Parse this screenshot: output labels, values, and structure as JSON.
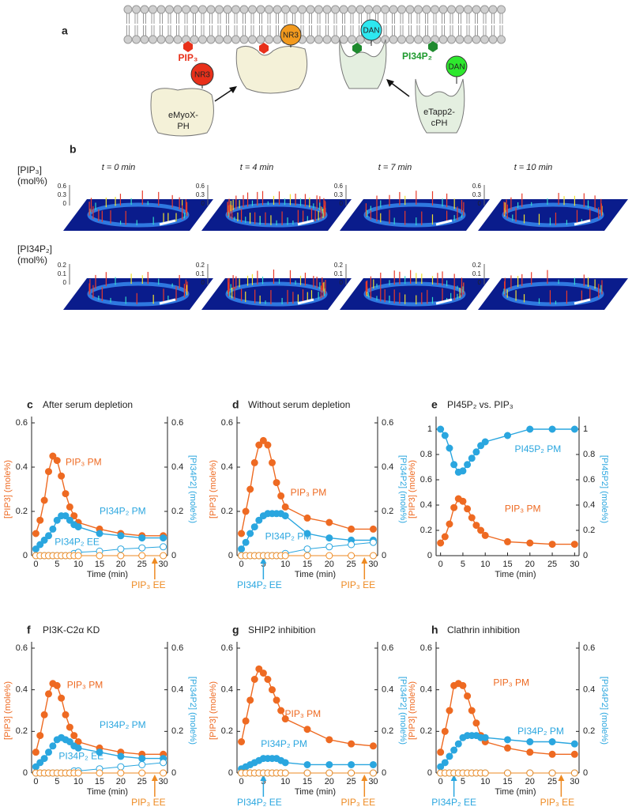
{
  "panel_a": {
    "label": "a",
    "lipids": [
      "PIP₃",
      "PI34P₂"
    ],
    "probes": [
      "NR3",
      "NR3",
      "DAN",
      "DAN"
    ],
    "proteins": [
      [
        "eMyoX-",
        "PH"
      ],
      [
        "eTapp2-",
        "cPH"
      ]
    ]
  },
  "panel_b": {
    "label": "b",
    "times": [
      "t = 0 min",
      "t = 4 min",
      "t = 7 min",
      "t = 10 min"
    ],
    "rows": [
      {
        "label": [
          "[PIP₃]",
          "(mol%)"
        ],
        "ticks": [
          "0.6",
          "0.3",
          "0"
        ]
      },
      {
        "label": [
          "[PI34P₂]",
          "(mol%)"
        ],
        "ticks": [
          "0.2",
          "0.1",
          "0"
        ]
      }
    ]
  },
  "chart_data": [
    {
      "type": "line",
      "panel_label": "c",
      "title": "After serum depletion",
      "x_label": "Time (min)",
      "y_label": "[PIP3] (mole%)",
      "y2_label": "[PI34P2] (mole%)",
      "xlim": [
        -1,
        31
      ],
      "xticks": [
        0,
        5,
        10,
        15,
        20,
        25,
        30
      ],
      "ylim": [
        0,
        0.6
      ],
      "yticks": [
        0,
        0.2,
        0.4,
        0.6
      ],
      "y2lim": [
        0,
        0.6
      ],
      "y2ticks": [
        0,
        0.2,
        0.4,
        0.6
      ],
      "x": [
        0,
        1,
        2,
        3,
        4,
        5,
        6,
        7,
        8,
        9,
        10,
        15,
        20,
        25,
        30
      ],
      "series": [
        {
          "name": "PIP₃ PM",
          "color": "#ee6a22",
          "marker": "filled",
          "values": [
            0.1,
            0.16,
            0.25,
            0.38,
            0.45,
            0.43,
            0.36,
            0.28,
            0.22,
            0.18,
            0.15,
            0.12,
            0.1,
            0.09,
            0.09
          ]
        },
        {
          "name": "PI34P₂ PM",
          "color": "#2aa6df",
          "marker": "filled",
          "axis": "y2",
          "values": [
            0.03,
            0.05,
            0.07,
            0.09,
            0.12,
            0.16,
            0.18,
            0.18,
            0.16,
            0.14,
            0.13,
            0.1,
            0.09,
            0.08,
            0.08
          ]
        },
        {
          "name": "PI34P₂ EE",
          "color": "#2aa6df",
          "marker": "open",
          "axis": "y2",
          "values": [
            0,
            0,
            0,
            0,
            0,
            0,
            0,
            0,
            0,
            0.01,
            0.015,
            0.02,
            0.03,
            0.035,
            0.04
          ]
        },
        {
          "name": "PIP₃ EE",
          "color": "#ee8a22",
          "marker": "open",
          "values": [
            0,
            0,
            0,
            0,
            0,
            0,
            0,
            0,
            0,
            0,
            0,
            0,
            0,
            0,
            0
          ]
        }
      ]
    },
    {
      "type": "line",
      "panel_label": "d",
      "title": "Without serum depletion",
      "x_label": "Time (min)",
      "y_label": "[PIP3] (mole%)",
      "y2_label": "[PI34P2] (mole%)",
      "xlim": [
        -1,
        31
      ],
      "xticks": [
        0,
        5,
        10,
        15,
        20,
        25,
        30
      ],
      "ylim": [
        0,
        0.6
      ],
      "yticks": [
        0,
        0.2,
        0.4,
        0.6
      ],
      "y2lim": [
        0,
        0.6
      ],
      "y2ticks": [
        0,
        0.2,
        0.4,
        0.6
      ],
      "x": [
        0,
        1,
        2,
        3,
        4,
        5,
        6,
        7,
        8,
        9,
        10,
        15,
        20,
        25,
        30
      ],
      "series": [
        {
          "name": "PIP₃ PM",
          "color": "#ee6a22",
          "marker": "filled",
          "values": [
            0.1,
            0.2,
            0.3,
            0.42,
            0.5,
            0.52,
            0.5,
            0.42,
            0.33,
            0.27,
            0.22,
            0.17,
            0.15,
            0.12,
            0.12
          ]
        },
        {
          "name": "PI34P₂ PM",
          "color": "#2aa6df",
          "marker": "filled",
          "axis": "y2",
          "values": [
            0.03,
            0.06,
            0.1,
            0.13,
            0.16,
            0.18,
            0.19,
            0.19,
            0.19,
            0.19,
            0.18,
            0.1,
            0.08,
            0.07,
            0.07
          ]
        },
        {
          "name": "PI34P₂ EE",
          "color": "#2aa6df",
          "marker": "open",
          "axis": "y2",
          "values": [
            0,
            0,
            0,
            0,
            0,
            0,
            0,
            0,
            0,
            0,
            0.01,
            0.03,
            0.04,
            0.05,
            0.06
          ]
        },
        {
          "name": "PIP₃ EE",
          "color": "#ee8a22",
          "marker": "open",
          "values": [
            0,
            0,
            0,
            0,
            0,
            0,
            0,
            0,
            0,
            0,
            0,
            0,
            0,
            0,
            0
          ]
        }
      ]
    },
    {
      "type": "line",
      "panel_label": "e",
      "title": "PI45P₂ vs. PIP₃",
      "x_label": "Time (min)",
      "y_label": "[PIP3] (mole%)",
      "y2_label": "[PI45P2] (mole%)",
      "xlim": [
        -1,
        31
      ],
      "xticks": [
        0,
        5,
        10,
        15,
        20,
        25,
        30
      ],
      "ylim": [
        0,
        1.05
      ],
      "yticks": [
        0,
        0.2,
        0.4,
        0.6,
        0.8,
        1
      ],
      "y2lim": [
        0,
        1.05
      ],
      "y2ticks": [
        0,
        0.2,
        0.4,
        0.6,
        0.8,
        1
      ],
      "x": [
        0,
        1,
        2,
        3,
        4,
        5,
        6,
        7,
        8,
        9,
        10,
        15,
        20,
        25,
        30
      ],
      "series": [
        {
          "name": "PI45P₂ PM",
          "color": "#2aa6df",
          "marker": "filled",
          "axis": "y2",
          "values": [
            1.0,
            0.95,
            0.85,
            0.72,
            0.66,
            0.67,
            0.72,
            0.77,
            0.82,
            0.87,
            0.9,
            0.95,
            1.0,
            1.0,
            1.0
          ]
        },
        {
          "name": "PIP₃ PM",
          "color": "#ee6a22",
          "marker": "filled",
          "values": [
            0.1,
            0.15,
            0.25,
            0.38,
            0.45,
            0.43,
            0.37,
            0.3,
            0.24,
            0.2,
            0.16,
            0.11,
            0.1,
            0.09,
            0.09
          ]
        }
      ]
    },
    {
      "type": "line",
      "panel_label": "f",
      "title": "PI3K-C2α KD",
      "x_label": "Time (min)",
      "y_label": "[PIP3] (mole%)",
      "y2_label": "[PI34P2] (mole%)",
      "xlim": [
        -1,
        31
      ],
      "xticks": [
        0,
        5,
        10,
        15,
        20,
        25,
        30
      ],
      "ylim": [
        0,
        0.6
      ],
      "yticks": [
        0,
        0.2,
        0.4,
        0.6
      ],
      "y2lim": [
        0,
        0.6
      ],
      "y2ticks": [
        0,
        0.2,
        0.4,
        0.6
      ],
      "x": [
        0,
        1,
        2,
        3,
        4,
        5,
        6,
        7,
        8,
        9,
        10,
        15,
        20,
        25,
        30
      ],
      "series": [
        {
          "name": "PIP₃ PM",
          "color": "#ee6a22",
          "marker": "filled",
          "values": [
            0.1,
            0.18,
            0.28,
            0.38,
            0.43,
            0.42,
            0.36,
            0.28,
            0.22,
            0.18,
            0.15,
            0.12,
            0.1,
            0.09,
            0.09
          ]
        },
        {
          "name": "PI34P₂ PM",
          "color": "#2aa6df",
          "marker": "filled",
          "axis": "y2",
          "values": [
            0.03,
            0.05,
            0.07,
            0.1,
            0.13,
            0.16,
            0.17,
            0.16,
            0.15,
            0.13,
            0.12,
            0.1,
            0.08,
            0.07,
            0.07
          ]
        },
        {
          "name": "PI34P₂ EE",
          "color": "#2aa6df",
          "marker": "open",
          "axis": "y2",
          "values": [
            0,
            0,
            0,
            0,
            0,
            0,
            0,
            0,
            0,
            0.01,
            0.01,
            0.02,
            0.03,
            0.04,
            0.05
          ]
        },
        {
          "name": "PIP₃ EE",
          "color": "#ee8a22",
          "marker": "open",
          "values": [
            0,
            0,
            0,
            0,
            0,
            0,
            0,
            0,
            0,
            0,
            0,
            0,
            0,
            0,
            0
          ]
        }
      ]
    },
    {
      "type": "line",
      "panel_label": "g",
      "title": "SHIP2 inhibition",
      "x_label": "Time (min)",
      "y_label": "[PIP3] (mole%)",
      "y2_label": "[PI34P2] (mole%)",
      "xlim": [
        -1,
        31
      ],
      "xticks": [
        0,
        5,
        10,
        15,
        20,
        25,
        30
      ],
      "ylim": [
        0,
        0.6
      ],
      "yticks": [
        0,
        0.2,
        0.4,
        0.6
      ],
      "y2lim": [
        0,
        0.6
      ],
      "y2ticks": [
        0,
        0.2,
        0.4,
        0.6
      ],
      "x": [
        0,
        1,
        2,
        3,
        4,
        5,
        6,
        7,
        8,
        9,
        10,
        15,
        20,
        25,
        30
      ],
      "series": [
        {
          "name": "PIP₃ PM",
          "color": "#ee6a22",
          "marker": "filled",
          "values": [
            0.15,
            0.25,
            0.35,
            0.45,
            0.5,
            0.48,
            0.45,
            0.4,
            0.35,
            0.3,
            0.26,
            0.21,
            0.16,
            0.14,
            0.13
          ]
        },
        {
          "name": "PI34P₂ PM",
          "color": "#2aa6df",
          "marker": "filled",
          "axis": "y2",
          "values": [
            0.02,
            0.03,
            0.04,
            0.05,
            0.06,
            0.07,
            0.07,
            0.07,
            0.07,
            0.06,
            0.05,
            0.04,
            0.04,
            0.04,
            0.04
          ]
        },
        {
          "name": "PI34P₂ EE",
          "color": "#2aa6df",
          "marker": "open",
          "axis": "y2",
          "values": [
            0,
            0,
            0,
            0,
            0,
            0,
            0,
            0,
            0,
            0,
            0,
            0,
            0,
            0,
            0
          ]
        },
        {
          "name": "PIP₃ EE",
          "color": "#ee8a22",
          "marker": "open",
          "values": [
            0,
            0,
            0,
            0,
            0,
            0,
            0,
            0,
            0,
            0,
            0,
            0,
            0,
            0,
            0
          ]
        }
      ]
    },
    {
      "type": "line",
      "panel_label": "h",
      "title": "Clathrin inhibition",
      "x_label": "Time (min)",
      "y_label": "[PIP3] (mole%)",
      "y2_label": "[PI34P2] (mole%)",
      "xlim": [
        -1,
        31
      ],
      "xticks": [
        0,
        5,
        10,
        15,
        20,
        25,
        30
      ],
      "ylim": [
        0,
        0.6
      ],
      "yticks": [
        0,
        0.2,
        0.4,
        0.6
      ],
      "y2lim": [
        0,
        0.6
      ],
      "y2ticks": [
        0,
        0.2,
        0.4,
        0.6
      ],
      "x": [
        0,
        1,
        2,
        3,
        4,
        5,
        6,
        7,
        8,
        9,
        10,
        15,
        20,
        25,
        30
      ],
      "series": [
        {
          "name": "PIP₃ PM",
          "color": "#ee6a22",
          "marker": "filled",
          "values": [
            0.1,
            0.2,
            0.3,
            0.42,
            0.43,
            0.42,
            0.37,
            0.3,
            0.24,
            0.18,
            0.15,
            0.12,
            0.1,
            0.09,
            0.09
          ]
        },
        {
          "name": "PI34P₂ PM",
          "color": "#2aa6df",
          "marker": "filled",
          "axis": "y2",
          "values": [
            0.03,
            0.05,
            0.08,
            0.11,
            0.14,
            0.17,
            0.18,
            0.18,
            0.18,
            0.17,
            0.17,
            0.16,
            0.15,
            0.15,
            0.14
          ]
        },
        {
          "name": "PI34P₂ EE",
          "color": "#2aa6df",
          "marker": "open",
          "axis": "y2",
          "values": [
            0,
            0,
            0,
            0,
            0,
            0,
            0,
            0,
            0,
            0,
            0,
            0,
            0,
            0,
            0
          ]
        },
        {
          "name": "PIP₃ EE",
          "color": "#ee8a22",
          "marker": "open",
          "values": [
            0,
            0,
            0,
            0,
            0,
            0,
            0,
            0,
            0,
            0,
            0,
            0,
            0,
            0,
            0
          ]
        }
      ]
    }
  ]
}
